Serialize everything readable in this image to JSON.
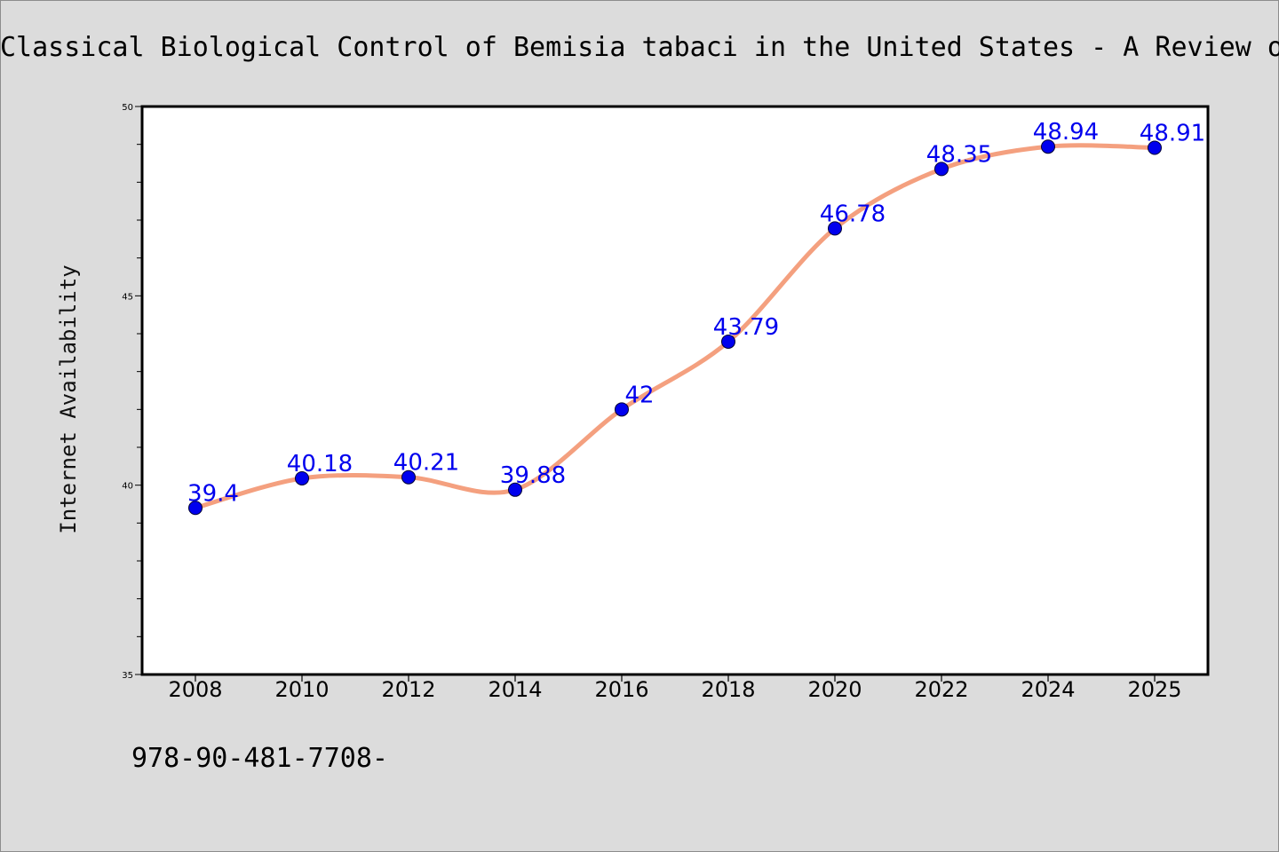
{
  "colors": {
    "background": "#dcdcdc",
    "plot_background": "#ffffff",
    "line": "#f4a07f",
    "marker": "#0000ee",
    "data_label": "#0000ee"
  },
  "chart_data": {
    "type": "line",
    "title": "Classical Biological Control of Bemisia tabaci in the United States - A Review o",
    "xlabel": "",
    "ylabel": "Internet Availability",
    "categories": [
      "2008",
      "2010",
      "2012",
      "2014",
      "2016",
      "2018",
      "2020",
      "2022",
      "2024",
      "2025"
    ],
    "series": [
      {
        "values": [
          39.4,
          40.18,
          40.21,
          39.88,
          42,
          43.79,
          46.78,
          48.35,
          48.94,
          48.91
        ],
        "labels": [
          "39.4",
          "40.18",
          "40.21",
          "39.88",
          "42",
          "43.79",
          "46.78",
          "48.35",
          "48.94",
          "48.91"
        ]
      }
    ],
    "ylim": [
      35,
      50
    ],
    "yticks": [
      "35",
      "40",
      "45",
      "50"
    ],
    "grid": false,
    "legend": "none"
  },
  "footnote": "978-90-481-7708-"
}
